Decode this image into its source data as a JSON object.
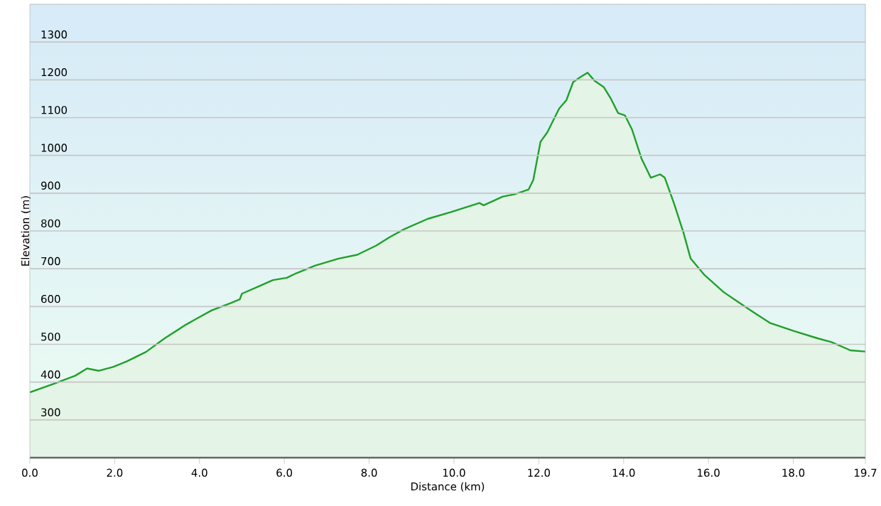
{
  "chart_data": {
    "type": "area",
    "xlabel": "Distance (km)",
    "ylabel": "Elevation (m)",
    "xlim": [
      0,
      19.7
    ],
    "ylim": [
      200,
      1400
    ],
    "xticks": [
      {
        "value": 0,
        "label": "0.0"
      },
      {
        "value": 2,
        "label": "2.0"
      },
      {
        "value": 4,
        "label": "4.0"
      },
      {
        "value": 6,
        "label": "6.0"
      },
      {
        "value": 8,
        "label": "8.0"
      },
      {
        "value": 10,
        "label": "10.0"
      },
      {
        "value": 12,
        "label": "12.0"
      },
      {
        "value": 14,
        "label": "14.0"
      },
      {
        "value": 16,
        "label": "16.0"
      },
      {
        "value": 18,
        "label": "18.0"
      },
      {
        "value": 19.7,
        "label": "19.7"
      }
    ],
    "yticks": [
      300,
      400,
      500,
      600,
      700,
      800,
      900,
      1000,
      1100,
      1200,
      1300
    ],
    "grid": "y",
    "marker": "none",
    "line_style": "solid",
    "series": [
      {
        "color": "#1fa02c",
        "x": [
          0,
          0.63,
          1.07,
          1.35,
          1.63,
          1.96,
          2.29,
          2.74,
          3.18,
          3.68,
          3.95,
          4.29,
          4.73,
          4.95,
          5.0,
          5.39,
          5.73,
          6.06,
          6.28,
          6.72,
          7.28,
          7.72,
          8.16,
          8.49,
          8.83,
          9.38,
          9.93,
          10.6,
          10.7,
          11.15,
          11.43,
          11.76,
          11.87,
          12.04,
          12.2,
          12.48,
          12.65,
          12.81,
          12.98,
          13.15,
          13.31,
          13.53,
          13.7,
          13.87,
          14.03,
          14.2,
          14.42,
          14.64,
          14.86,
          14.97,
          15.19,
          15.41,
          15.58,
          15.91,
          16.36,
          16.69,
          17.02,
          17.46,
          18.02,
          18.57,
          18.9,
          19.35,
          19.7
        ],
        "values": [
          373,
          398,
          417,
          436,
          430,
          440,
          455,
          480,
          516,
          552,
          569,
          590,
          609,
          619,
          634,
          653,
          670,
          676,
          688,
          708,
          727,
          737,
          761,
          784,
          805,
          832,
          850,
          874,
          868,
          891,
          897,
          910,
          935,
          1036,
          1061,
          1124,
          1146,
          1194,
          1207,
          1219,
          1198,
          1181,
          1150,
          1112,
          1106,
          1068,
          992,
          941,
          950,
          941,
          872,
          796,
          727,
          683,
          638,
          613,
          588,
          556,
          535,
          516,
          506,
          484,
          481
        ]
      }
    ]
  }
}
